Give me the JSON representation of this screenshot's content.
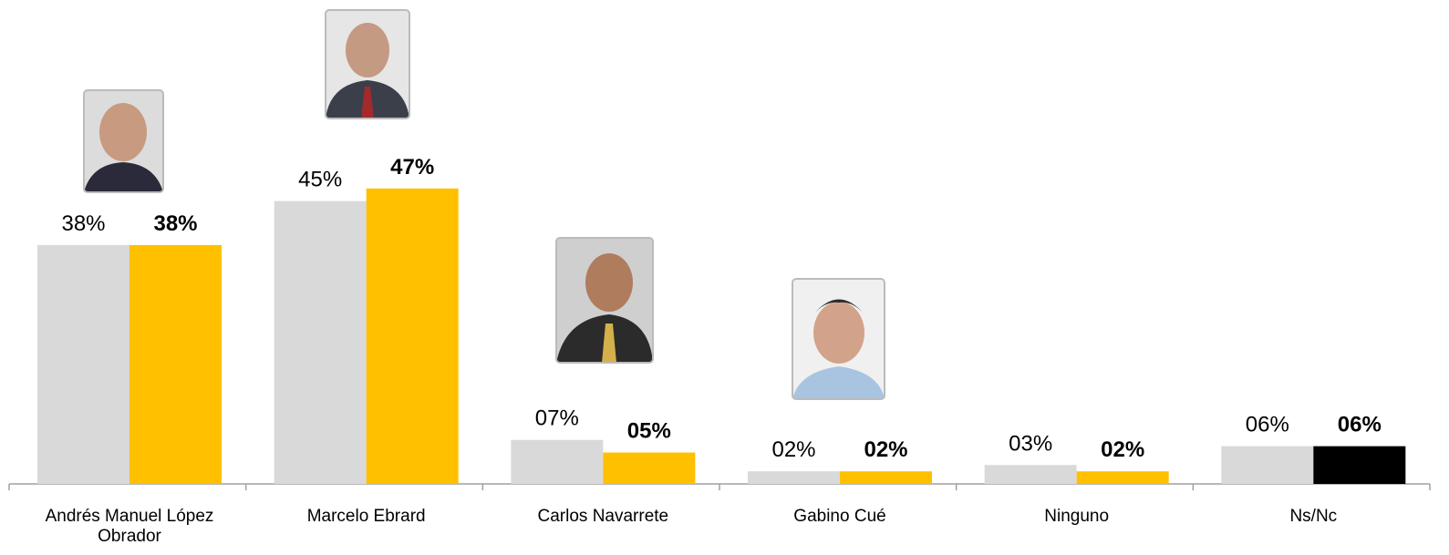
{
  "chart_data": {
    "type": "bar",
    "categories": [
      "Andrés Manuel López Obrador",
      "Marcelo Ebrard",
      "Carlos Navarrete",
      "Gabino Cué",
      "Ninguno",
      "Ns/Nc"
    ],
    "series": [
      {
        "color": "#d9d9d9",
        "values": [
          38,
          45,
          7,
          2,
          3,
          6
        ],
        "value_labels": [
          "38%",
          "45%",
          "07%",
          "02%",
          "03%",
          "06%"
        ],
        "value_label_bold": false
      },
      {
        "color": "#ffc000",
        "colors": [
          "#ffc000",
          "#ffc000",
          "#ffc000",
          "#ffc000",
          "#ffc000",
          "#000000"
        ],
        "values": [
          38,
          47,
          5,
          2,
          2,
          6
        ],
        "value_labels": [
          "38%",
          "47%",
          "05%",
          "02%",
          "02%",
          "06%"
        ],
        "value_label_bold": true
      }
    ],
    "ylim": [
      0,
      49
    ]
  }
}
